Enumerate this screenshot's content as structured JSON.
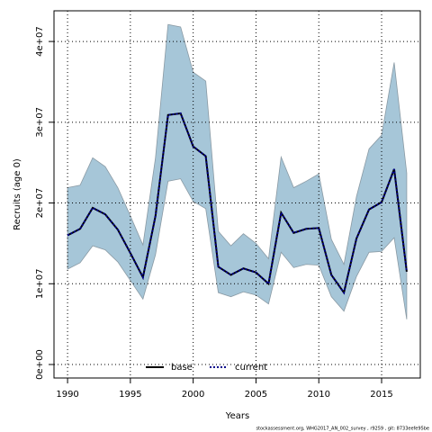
{
  "chart_data": {
    "type": "line",
    "x_label": "Years",
    "y_label": "Recruits (age 0)",
    "footer": "stockassessment.org, WHG2017_AN_002_survey , r9259 , git: 8733eefe95be",
    "x": [
      1990,
      1991,
      1992,
      1993,
      1994,
      1995,
      1996,
      1997,
      1998,
      1999,
      2000,
      2001,
      2002,
      2003,
      2004,
      2005,
      2006,
      2007,
      2008,
      2009,
      2010,
      2011,
      2012,
      2013,
      2014,
      2015,
      2016,
      2017
    ],
    "band": {
      "color": "#a6c6d8",
      "upper": [
        21900000,
        22200000,
        25600000,
        24500000,
        21900000,
        18400000,
        14800000,
        25600000,
        42100000,
        41800000,
        36200000,
        35100000,
        16500000,
        14700000,
        16200000,
        15000000,
        13100000,
        25700000,
        21900000,
        22700000,
        23600000,
        15500000,
        12400000,
        20800000,
        26700000,
        28400000,
        37400000,
        23700000
      ],
      "lower": [
        11800000,
        12600000,
        14700000,
        14200000,
        12700000,
        10400000,
        8100000,
        13600000,
        22700000,
        23000000,
        20200000,
        19300000,
        8900000,
        8400000,
        9000000,
        8600000,
        7500000,
        13900000,
        12000000,
        12400000,
        12300000,
        8400000,
        6600000,
        10900000,
        13900000,
        14000000,
        15700000,
        5600000
      ]
    },
    "series": [
      {
        "name": "base",
        "color": "#000000",
        "dash": "solid",
        "values": [
          16000000,
          16800000,
          19400000,
          18600000,
          16700000,
          13800000,
          10800000,
          18400000,
          30900000,
          31100000,
          27000000,
          25800000,
          12100000,
          11100000,
          11900000,
          11400000,
          10000000,
          18800000,
          16300000,
          16800000,
          16900000,
          11100000,
          8900000,
          15600000,
          19200000,
          20100000,
          24200000,
          11500000
        ]
      },
      {
        "name": "current",
        "color": "#00008b",
        "dash": "dotted",
        "values": [
          16000000,
          16800000,
          19400000,
          18600000,
          16700000,
          13800000,
          10800000,
          18400000,
          30900000,
          31100000,
          27000000,
          25800000,
          12100000,
          11100000,
          11900000,
          11400000,
          10000000,
          18800000,
          16300000,
          16800000,
          16900000,
          11100000,
          8900000,
          15600000,
          19200000,
          20100000,
          24200000,
          11500000
        ]
      }
    ],
    "xlim": [
      1988.92,
      2018.08
    ],
    "xticks": [
      1990,
      1995,
      2000,
      2005,
      2010,
      2015
    ],
    "ylim": [
      -1670000,
      43800000
    ],
    "yticks": [
      {
        "value": 0,
        "label": "0e+00"
      },
      {
        "value": 10000000,
        "label": "1e+07"
      },
      {
        "value": 20000000,
        "label": "2e+07"
      },
      {
        "value": 30000000,
        "label": "3e+07"
      },
      {
        "value": 40000000,
        "label": "4e+07"
      }
    ],
    "grid": true,
    "legend": "bottom"
  }
}
